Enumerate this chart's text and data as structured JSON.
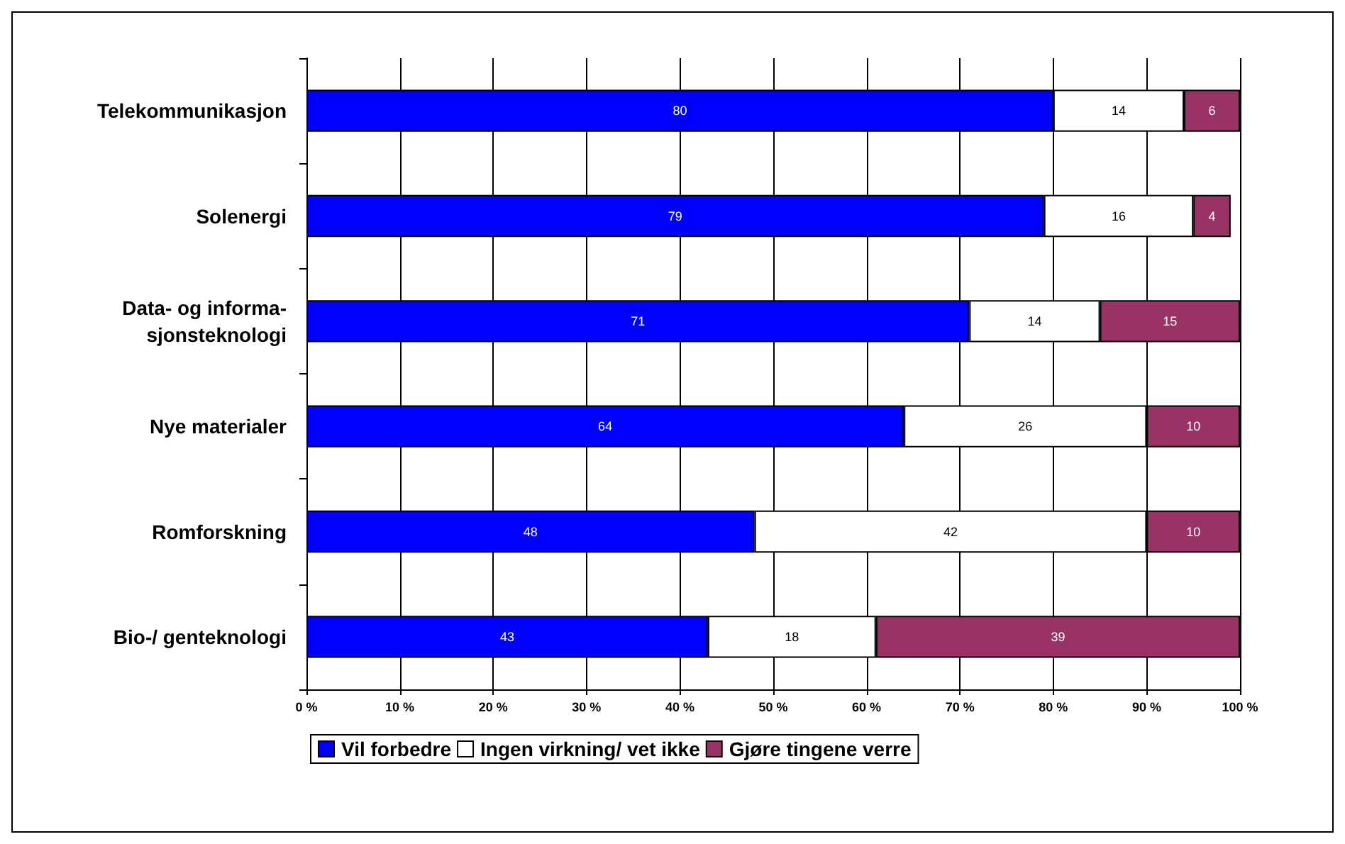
{
  "chart_data": {
    "type": "bar",
    "orientation": "horizontal",
    "stacked": true,
    "data_labels": true,
    "grid": "x",
    "legend": "bottom",
    "categories": [
      "Telekommunikasjon",
      "Solenergi",
      "Data- og informa-\nsjonsteknologi",
      "Nye materialer",
      "Romforskning",
      "Bio-/ genteknologi"
    ],
    "series": [
      {
        "name": "Vil forbedre",
        "color": "#0000ff",
        "values": [
          80,
          79,
          71,
          64,
          48,
          43
        ]
      },
      {
        "name": "Ingen virkning/ vet ikke",
        "color": "#ffffff",
        "values": [
          14,
          16,
          14,
          26,
          42,
          18
        ]
      },
      {
        "name": "Gjøre tingene verre",
        "color": "#993366",
        "values": [
          6,
          4,
          15,
          10,
          10,
          39
        ]
      }
    ],
    "xlim": [
      0,
      100
    ],
    "xticks": [
      {
        "value": 0,
        "label": "0 %"
      },
      {
        "value": 10,
        "label": "10 %"
      },
      {
        "value": 20,
        "label": "20 %"
      },
      {
        "value": 30,
        "label": "30 %"
      },
      {
        "value": 40,
        "label": "40 %"
      },
      {
        "value": 50,
        "label": "50 %"
      },
      {
        "value": 60,
        "label": "60 %"
      },
      {
        "value": 70,
        "label": "70 %"
      },
      {
        "value": 80,
        "label": "80 %"
      },
      {
        "value": 90,
        "label": "90 %"
      },
      {
        "value": 100,
        "label": "100 %"
      }
    ]
  }
}
